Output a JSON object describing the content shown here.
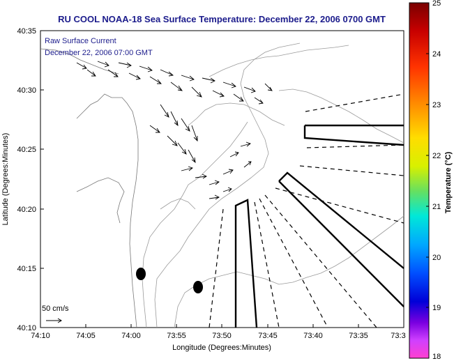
{
  "title": "RU COOL  NOAA-18  Sea Surface Temperature:  December 22, 2006 0700 GMT",
  "legend_line1": "Raw Surface Current",
  "legend_line2": "December 22, 2006 07:00 GMT",
  "xlabel": "Longitude (Degrees:Minutes)",
  "ylabel": "Latitude (Degrees:Minutes)",
  "colorbar_label": "Temperature (°C)",
  "scale_label": "50 cm/s",
  "x_ticks": [
    "74:10",
    "74:05",
    "74:00",
    "73:55",
    "73:50",
    "73:45",
    "73:40",
    "73:35",
    "73:3"
  ],
  "y_ticks": [
    "40:35",
    "40:30",
    "40:25",
    "40:20",
    "40:15",
    "40:10"
  ],
  "colorbar_ticks": [
    "25",
    "24",
    "23",
    "22",
    "21",
    "20",
    "19",
    "18"
  ],
  "colors": {
    "title": "#1c1c8c",
    "legend": "#1c1c8c",
    "contour": "#8a8a8a"
  },
  "colorbar_range": [
    18,
    25
  ]
}
